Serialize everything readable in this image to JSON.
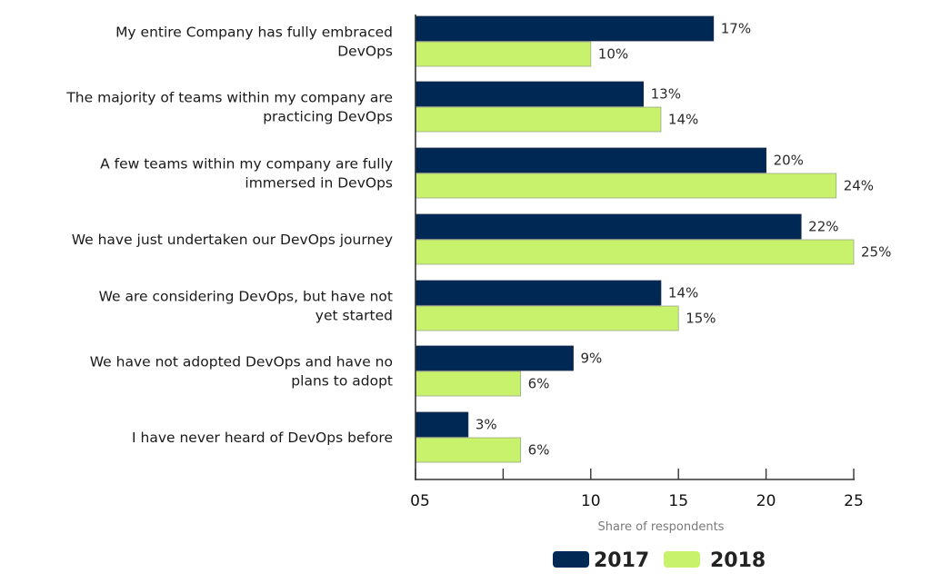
{
  "chart_data": {
    "type": "bar",
    "orientation": "horizontal",
    "title": "",
    "xlabel": "Share of respondents",
    "ylabel": "",
    "xlim": [
      0,
      25
    ],
    "x_ticks": [
      0,
      5,
      10,
      15,
      20,
      25
    ],
    "x_tick_labels": [
      "05",
      "",
      "10",
      "15",
      "20",
      "25"
    ],
    "grid": false,
    "legend_position": "bottom-center",
    "categories": [
      [
        "My entire Company has fully embraced",
        "DevOps"
      ],
      [
        "The majority of teams within my company are",
        "practicing DevOps"
      ],
      [
        "A few teams within my company are fully",
        "immersed in DevOps"
      ],
      [
        "We have just undertaken our DevOps journey"
      ],
      [
        "We are considering DevOps, but have not",
        "yet started"
      ],
      [
        "We have not adopted DevOps and have no",
        "plans to adopt"
      ],
      [
        "I have never heard of DevOps before"
      ]
    ],
    "series": [
      {
        "name": "2017",
        "color": "#002855",
        "values": [
          17,
          13,
          20,
          22,
          14,
          9,
          3
        ],
        "labels": [
          "17%",
          "13%",
          "20%",
          "22%",
          "14%",
          "9%",
          "3%"
        ]
      },
      {
        "name": "2018",
        "color": "#c8f26b",
        "values": [
          10,
          14,
          24,
          25,
          15,
          6,
          6
        ],
        "labels": [
          "10%",
          "14%",
          "24%",
          "25%",
          "15%",
          "6%",
          "6%"
        ]
      }
    ]
  }
}
